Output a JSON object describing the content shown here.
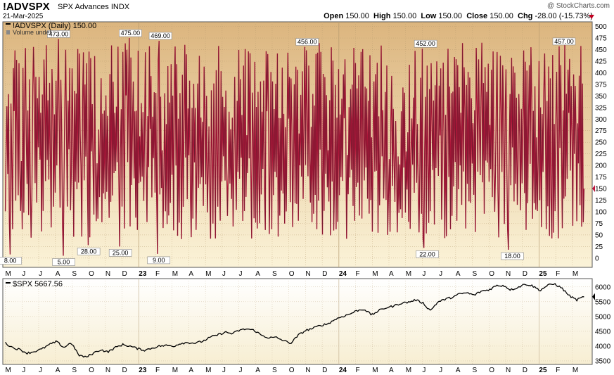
{
  "header": {
    "symbol": "!ADVSPX",
    "name": "SPX Advances INDX",
    "date": "21-Mar-2025",
    "credit": "@ StockCharts.com",
    "open_label": "Open",
    "open_value": "150.00",
    "high_label": "High",
    "high_value": "150.00",
    "low_label": "Low",
    "low_value": "150.00",
    "close_label": "Close",
    "close_value": "150.00",
    "chg_label": "Chg",
    "chg_value": "-28.00 (-15.73%)"
  },
  "panel1": {
    "legend": "!ADVSPX (Daily) 150.00",
    "volume_note": "Volume undef",
    "colors": {
      "bg_top": "#dcb57e",
      "bg_bottom": "#fbf3d8",
      "line": "#c0143c",
      "line_dark": "#222222"
    }
  },
  "panel2": {
    "legend": "$SPX 5667.56",
    "colors": {
      "bg_top": "#ffffff",
      "bg_bottom": "#f7eed2",
      "line": "#000000"
    }
  },
  "x_axis_labels": [
    "M",
    "J",
    "J",
    "A",
    "S",
    "O",
    "N",
    "D",
    "23",
    "F",
    "M",
    "A",
    "M",
    "J",
    "J",
    "A",
    "S",
    "O",
    "N",
    "D",
    "24",
    "F",
    "M",
    "A",
    "M",
    "J",
    "J",
    "A",
    "S",
    "O",
    "N",
    "D",
    "25",
    "F",
    "M"
  ],
  "chart_data": [
    {
      "type": "line",
      "title": "!ADVSPX (Daily) 150.00",
      "ylim": [
        -20,
        510
      ],
      "yticks": [
        0,
        25,
        50,
        75,
        100,
        125,
        150,
        175,
        200,
        225,
        250,
        275,
        300,
        325,
        350,
        375,
        400,
        425,
        450,
        475,
        500
      ],
      "x_months": 35,
      "annotations": [
        {
          "x": 0.3,
          "y": 8,
          "label": "8.00"
        },
        {
          "x": 3.2,
          "y": 473,
          "label": "473.00"
        },
        {
          "x": 3.5,
          "y": 5,
          "label": "5.00"
        },
        {
          "x": 5.0,
          "y": 28,
          "label": "28.00"
        },
        {
          "x": 6.9,
          "y": 25,
          "label": "25.00"
        },
        {
          "x": 7.5,
          "y": 475,
          "label": "475.00"
        },
        {
          "x": 9.2,
          "y": 9,
          "label": "9.00"
        },
        {
          "x": 9.3,
          "y": 469,
          "label": "469.00"
        },
        {
          "x": 18.1,
          "y": 456,
          "label": "456.00"
        },
        {
          "x": 25.3,
          "y": 22,
          "label": "22.00"
        },
        {
          "x": 25.2,
          "y": 452,
          "label": "452.00"
        },
        {
          "x": 30.4,
          "y": 18,
          "label": "18.00"
        },
        {
          "x": 33.5,
          "y": 457,
          "label": "457.00"
        }
      ],
      "last": 150
    },
    {
      "type": "line",
      "title": "$SPX 5667.56",
      "ylim": [
        3380,
        6280
      ],
      "yticks": [
        3500,
        4000,
        4500,
        5000,
        5500,
        6000
      ],
      "x_months": 35,
      "series": [
        {
          "values": [
            4100,
            3950,
            3880,
            3760,
            3820,
            3900,
            4050,
            4150,
            3950,
            4120,
            3700,
            3620,
            3760,
            3880,
            3800,
            3950,
            4050,
            4000,
            3920,
            3860,
            3930,
            4000,
            4020,
            4000,
            4100,
            4120,
            4100,
            4170,
            4300,
            4380,
            4470,
            4420,
            4540,
            4580,
            4530,
            4360,
            4280,
            4290,
            4180,
            4100,
            4370,
            4530,
            4600,
            4700,
            4750,
            4900,
            5000,
            5080,
            5200,
            5250,
            5050,
            5200,
            5300,
            5350,
            5450,
            5480,
            5560,
            5460,
            5200,
            5480,
            5580,
            5650,
            5760,
            5800,
            5720,
            5860,
            5900,
            6040,
            6050,
            5900,
            5990,
            6100,
            6030,
            5880,
            6050,
            6100,
            5950,
            5700,
            5560,
            5667
          ]
        }
      ],
      "last": 5667.56
    }
  ]
}
